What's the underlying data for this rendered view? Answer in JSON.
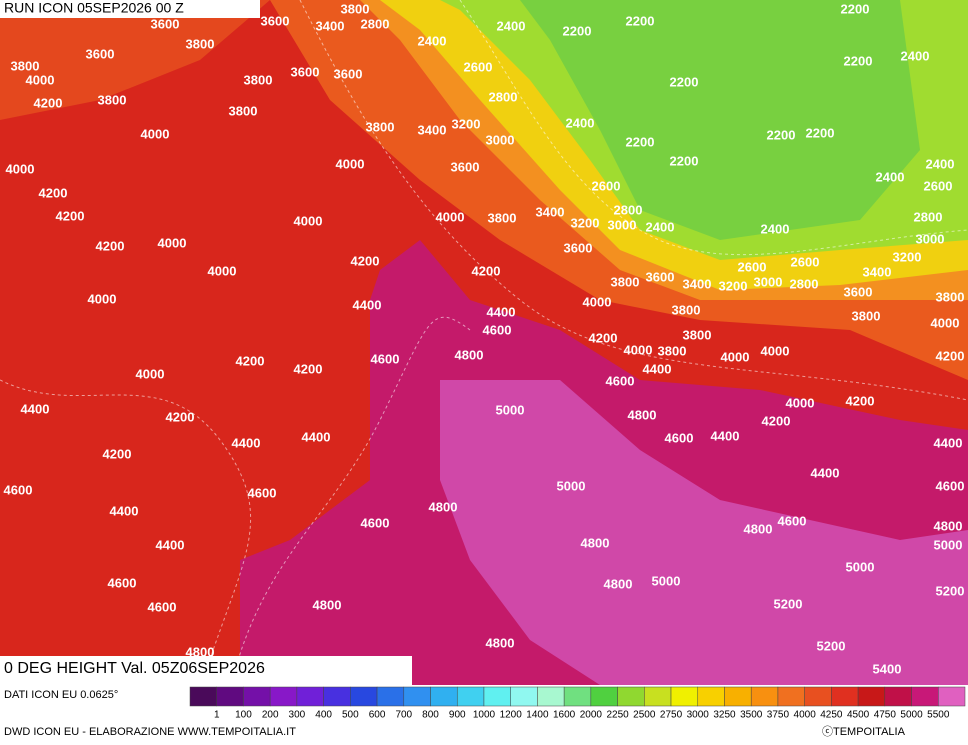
{
  "header": {
    "run": "RUN ICON 05SEP2026 00 Z",
    "field": "0 DEG HEIGHT Val. 05Z06SEP2026"
  },
  "source": "DATI ICON EU 0.0625°",
  "footer": {
    "left": "DWD ICON EU - ELABORAZIONE WWW.TEMPOITALIA.IT",
    "right": "ⓒTEMPOITALIA"
  },
  "legend": {
    "ticks": [
      1,
      100,
      200,
      300,
      400,
      500,
      600,
      700,
      800,
      900,
      1000,
      1200,
      1400,
      1600,
      2000,
      2250,
      2500,
      2750,
      3000,
      3250,
      3500,
      3750,
      4000,
      4250,
      4500,
      4750,
      5000,
      5500
    ],
    "colors": [
      "#4a0a5a",
      "#600a80",
      "#7410a8",
      "#8818c8",
      "#7020d8",
      "#4830e0",
      "#2848e0",
      "#2a70e8",
      "#3090f0",
      "#30b0f0",
      "#40d0f0",
      "#60f0f0",
      "#90f8f0",
      "#a8f8d0",
      "#70e080",
      "#50d040",
      "#90d830",
      "#c8e020",
      "#f0f000",
      "#f8d000",
      "#f8b000",
      "#f89010",
      "#f07020",
      "#e85020",
      "#e03020",
      "#c81818",
      "#c01048",
      "#c81878",
      "#e060c0"
    ]
  },
  "contour_labels": [
    3600,
    3800,
    2800,
    3400,
    3600,
    3800,
    3600,
    3800,
    4000,
    3800,
    3600,
    3600,
    3800,
    4200,
    3800,
    4000,
    3800,
    3400,
    3200,
    3000,
    4000,
    3600,
    4000,
    4200,
    4200,
    4000,
    4000,
    3800,
    3400,
    3200,
    3000,
    2800,
    2400,
    3600,
    4200,
    4000,
    4200,
    4200,
    4000,
    3800,
    3600,
    3400,
    3200,
    3000,
    2800,
    2600,
    2600,
    2400,
    4000,
    4400,
    4400,
    4600,
    4000,
    3800,
    4200,
    4000,
    3800,
    3800,
    4000,
    4000,
    4600,
    4800,
    4400,
    4600,
    4200,
    4200,
    4000,
    4400,
    4200,
    5000,
    4800,
    4000,
    4200,
    4200,
    4400,
    4400,
    4200,
    4600,
    4400,
    4400,
    4600,
    4600,
    5000,
    4400,
    4800,
    4600,
    4600,
    4800,
    4800,
    4400,
    4600,
    4800,
    5000,
    5000,
    4600,
    4800,
    5200,
    4800,
    5200,
    5400,
    4800,
    2200,
    2200,
    2400,
    2200,
    2400,
    2600,
    2800,
    2200,
    2200,
    2400,
    2400,
    2200,
    2200,
    2200,
    2200,
    2400,
    2400,
    2600,
    2600,
    2800,
    3000,
    3200,
    3400,
    3600,
    3800,
    3800,
    4000,
    4200,
    4400,
    4600,
    4800,
    5000,
    5200
  ]
}
